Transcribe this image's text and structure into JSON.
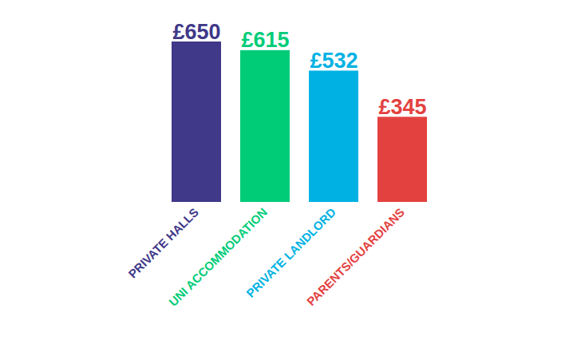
{
  "chart_data": {
    "type": "bar",
    "categories": [
      "PRIVATE HALLS",
      "UNI ACCOMMODATION",
      "PRIVATE LANDLORD",
      "PARENTS/GUARDIANS"
    ],
    "values": [
      650,
      615,
      532,
      345
    ],
    "value_labels": [
      "£650",
      "£615",
      "£532",
      "£345"
    ],
    "colors": [
      "#403888",
      "#00cc78",
      "#00b2e3",
      "#e3413f"
    ],
    "data_labels": true,
    "tick_labels": "x",
    "grid": false
  }
}
